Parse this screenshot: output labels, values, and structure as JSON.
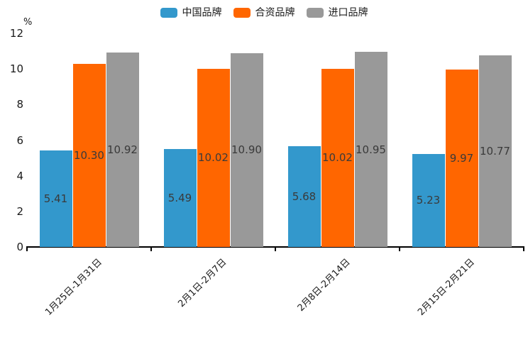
{
  "chart_data": {
    "type": "bar",
    "title": "",
    "xlabel": "",
    "ylabel": "%",
    "categories": [
      "1月25日-1月31日",
      "2月1日-2月7日",
      "2月8日-2月14日",
      "2月15日-2月21日"
    ],
    "series": [
      {
        "name": "中国品牌",
        "color": "#3398CC",
        "values": [
          5.41,
          5.49,
          5.68,
          5.23
        ],
        "labels": [
          "5.41",
          "5.49",
          "5.68",
          "5.23"
        ]
      },
      {
        "name": "合资品牌",
        "color": "#FF6600",
        "values": [
          10.3,
          10.02,
          10.02,
          9.97
        ],
        "labels": [
          "10.30",
          "10.02",
          "10.02",
          "9.97"
        ]
      },
      {
        "name": "进口品牌",
        "color": "#999999",
        "values": [
          10.92,
          10.9,
          10.95,
          10.77
        ],
        "labels": [
          "10.92",
          "10.90",
          "10.95",
          "10.77"
        ]
      }
    ],
    "yticks": [
      0,
      2,
      4,
      6,
      8,
      10,
      12
    ],
    "ylim": [
      0,
      12
    ],
    "grid": false,
    "legend_position": "top",
    "bar_value_labels_inside": true,
    "axis_color": "#000000",
    "value_label_color": "#3a3a3a"
  }
}
